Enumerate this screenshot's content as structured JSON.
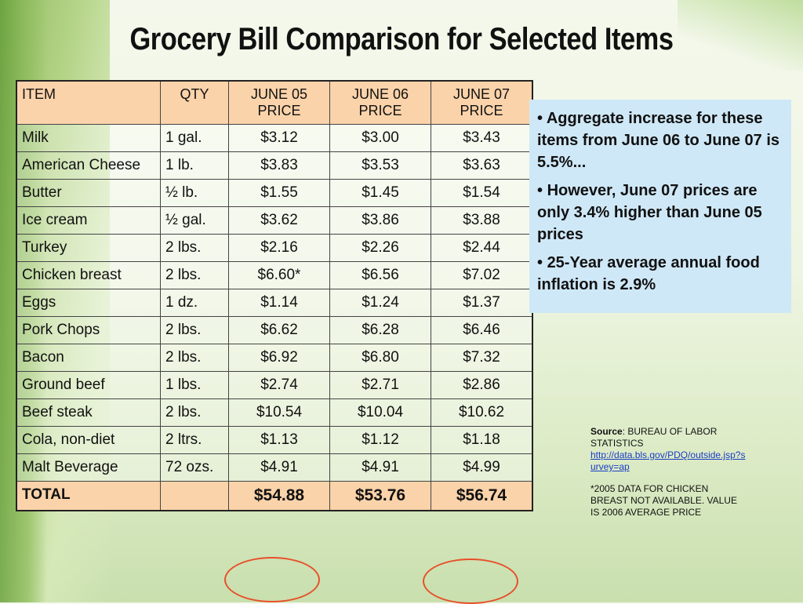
{
  "title": "Grocery Bill Comparison for Selected Items",
  "table": {
    "headers": {
      "item": "ITEM",
      "qty": "QTY",
      "june05": "JUNE 05 PRICE",
      "june06": "JUNE 06 PRICE",
      "june07": "JUNE 07 PRICE"
    },
    "rows": [
      {
        "item": "Milk",
        "qty": "1 gal.",
        "june05": "$3.12",
        "june06": "$3.00",
        "june07": "$3.43"
      },
      {
        "item": "American Cheese",
        "qty": "1 lb.",
        "june05": "$3.83",
        "june06": "$3.53",
        "june07": "$3.63"
      },
      {
        "item": "Butter",
        "qty": "½ lb.",
        "june05": "$1.55",
        "june06": "$1.45",
        "june07": "$1.54"
      },
      {
        "item": "Ice cream",
        "qty": "½ gal.",
        "june05": "$3.62",
        "june06": "$3.86",
        "june07": "$3.88"
      },
      {
        "item": "Turkey",
        "qty": "2 lbs.",
        "june05": "$2.16",
        "june06": "$2.26",
        "june07": "$2.44"
      },
      {
        "item": "Chicken breast",
        "qty": "2 lbs.",
        "june05": "$6.60*",
        "june06": "$6.56",
        "june07": "$7.02"
      },
      {
        "item": "Eggs",
        "qty": "1 dz.",
        "june05": "$1.14",
        "june06": "$1.24",
        "june07": "$1.37"
      },
      {
        "item": "Pork Chops",
        "qty": "2 lbs.",
        "june05": "$6.62",
        "june06": "$6.28",
        "june07": "$6.46"
      },
      {
        "item": "Bacon",
        "qty": "2 lbs.",
        "june05": "$6.92",
        "june06": "$6.80",
        "june07": "$7.32"
      },
      {
        "item": "Ground beef",
        "qty": "1 lbs.",
        "june05": "$2.74",
        "june06": "$2.71",
        "june07": "$2.86"
      },
      {
        "item": "Beef steak",
        "qty": "2 lbs.",
        "june05": "$10.54",
        "june06": "$10.04",
        "june07": "$10.62"
      },
      {
        "item": "Cola, non-diet",
        "qty": "2 ltrs.",
        "june05": "$1.13",
        "june06": "$1.12",
        "june07": "$1.18"
      },
      {
        "item": "Malt Beverage",
        "qty": "72 ozs.",
        "june05": "$4.91",
        "june06": "$4.91",
        "june07": "$4.99"
      }
    ],
    "total": {
      "item": "TOTAL",
      "qty": "",
      "june05": "$54.88",
      "june06": "$53.76",
      "june07": "$56.74"
    }
  },
  "callout": {
    "bullets": [
      "Aggregate increase for these items from June 06 to June 07 is 5.5%...",
      "However, June 07 prices are only 3.4% higher than June 05 prices",
      "25-Year average annual food inflation is 2.9%"
    ]
  },
  "source": {
    "label": "Source",
    "text": ": BUREAU OF LABOR STATISTICS",
    "link": "http://data.bls.gov/PDQ/outside.jsp?survey=ap"
  },
  "note": "*2005 DATA FOR CHICKEN BREAST NOT AVAILABLE. VALUE IS 2006 AVERAGE PRICE",
  "colors": {
    "header_bg": "#fbd3aa",
    "callout_bg": "#cfe8f7",
    "circle": "#e8502a"
  }
}
